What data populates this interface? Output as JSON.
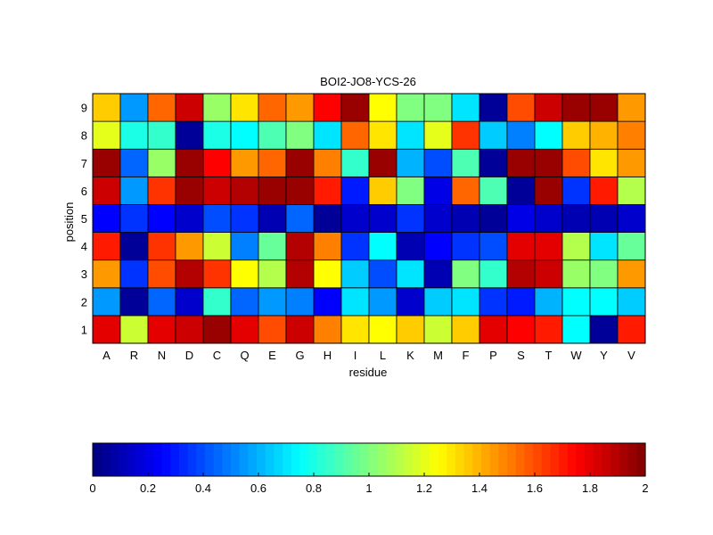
{
  "chart_data": {
    "type": "heatmap",
    "title": "BOI2-JO8-YCS-26",
    "xlabel": "residue",
    "ylabel": "position",
    "x_categories": [
      "A",
      "R",
      "N",
      "D",
      "C",
      "Q",
      "E",
      "G",
      "H",
      "I",
      "L",
      "K",
      "M",
      "F",
      "P",
      "S",
      "T",
      "W",
      "Y",
      "V"
    ],
    "y_categories": [
      "1",
      "2",
      "3",
      "4",
      "5",
      "6",
      "7",
      "8",
      "9"
    ],
    "values": [
      [
        1.8,
        1.15,
        1.8,
        1.85,
        1.95,
        1.8,
        1.6,
        1.85,
        1.5,
        1.3,
        1.25,
        1.35,
        1.15,
        1.35,
        1.8,
        1.75,
        1.7,
        0.75,
        0.05,
        1.7
      ],
      [
        0.55,
        0.05,
        0.45,
        0.15,
        0.85,
        0.45,
        0.55,
        0.5,
        0.25,
        0.7,
        0.55,
        0.15,
        0.65,
        0.7,
        0.35,
        0.3,
        0.6,
        0.75,
        0.75,
        0.65
      ],
      [
        1.45,
        0.35,
        1.6,
        1.9,
        1.65,
        1.25,
        1.1,
        1.9,
        1.25,
        0.65,
        0.4,
        0.7,
        0.1,
        1.0,
        0.85,
        1.9,
        1.85,
        1.05,
        1.0,
        1.45
      ],
      [
        1.7,
        0.05,
        1.65,
        1.45,
        1.15,
        0.5,
        0.95,
        1.9,
        1.5,
        0.35,
        0.75,
        0.1,
        0.25,
        0.35,
        0.4,
        1.8,
        1.8,
        1.1,
        0.7,
        0.95
      ],
      [
        0.25,
        0.35,
        0.25,
        0.15,
        0.4,
        0.35,
        0.1,
        0.45,
        0.05,
        0.15,
        0.15,
        0.35,
        0.15,
        0.1,
        0.05,
        0.2,
        0.15,
        0.1,
        0.1,
        0.15
      ],
      [
        1.85,
        0.55,
        1.65,
        1.95,
        1.85,
        1.9,
        1.95,
        1.95,
        1.7,
        0.3,
        1.35,
        1.0,
        0.2,
        1.55,
        0.9,
        0.05,
        1.95,
        0.35,
        1.7,
        1.1
      ],
      [
        1.95,
        0.45,
        1.05,
        1.95,
        1.75,
        1.45,
        1.55,
        1.95,
        1.5,
        0.85,
        1.95,
        0.6,
        0.4,
        0.9,
        0.05,
        1.95,
        1.95,
        1.6,
        1.3,
        1.45
      ],
      [
        1.2,
        0.8,
        0.85,
        0.05,
        0.8,
        0.75,
        0.9,
        1.0,
        0.7,
        1.55,
        1.3,
        0.7,
        1.2,
        1.65,
        0.65,
        0.5,
        0.75,
        1.35,
        1.4,
        1.5
      ],
      [
        1.35,
        0.55,
        1.55,
        1.85,
        1.05,
        1.3,
        1.55,
        1.45,
        1.75,
        1.95,
        1.25,
        1.0,
        1.0,
        0.7,
        0.05,
        1.6,
        1.85,
        1.95,
        1.95,
        1.45
      ]
    ],
    "colorbar": {
      "min": 0,
      "max": 2,
      "colormap": "jet",
      "orientation": "horizontal",
      "ticks": [
        "0",
        "0.2",
        "0.4",
        "0.6",
        "0.8",
        "1",
        "1.2",
        "1.4",
        "1.6",
        "1.8",
        "2"
      ]
    },
    "grid": false
  }
}
